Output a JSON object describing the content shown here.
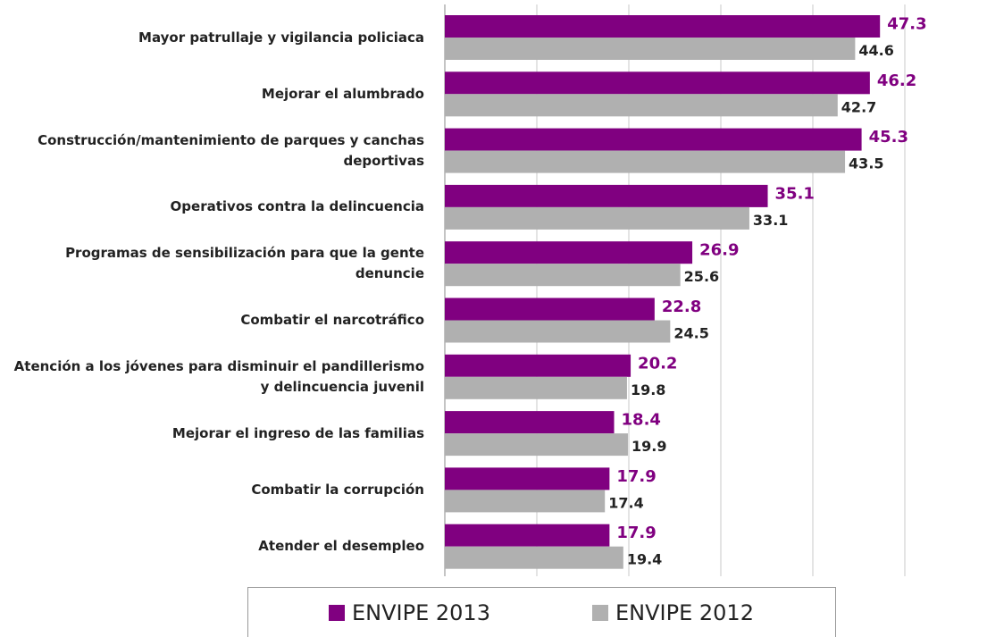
{
  "chart_data": {
    "type": "bar",
    "orientation": "horizontal",
    "categories": [
      "Mayor patrullaje y vigilancia policiaca",
      "Mejorar el alumbrado",
      "Construcción/mantenimiento de parques y canchas deportivas",
      "Operativos contra la delincuencia",
      "Programas de sensibilización para que la gente denuncie",
      "Combatir el narcotráfico",
      "Atención a los jóvenes para disminuir el pandillerismo y delincuencia juvenil",
      "Mejorar el ingreso de las familias",
      "Combatir la corrupción",
      "Atender el desempleo"
    ],
    "series": [
      {
        "name": "ENVIPE 2013",
        "color": "#800080",
        "values": [
          47.3,
          46.2,
          45.3,
          35.1,
          26.9,
          22.8,
          20.2,
          18.4,
          17.9,
          17.9
        ]
      },
      {
        "name": "ENVIPE 2012",
        "color": "#b0b0b0",
        "values": [
          44.6,
          42.7,
          43.5,
          33.1,
          25.6,
          24.5,
          19.8,
          19.9,
          17.4,
          19.4
        ]
      }
    ],
    "xlim": [
      0,
      55
    ],
    "xticks": [
      0,
      10,
      20,
      30,
      40,
      50
    ],
    "grid": true,
    "legend": "bottom"
  }
}
